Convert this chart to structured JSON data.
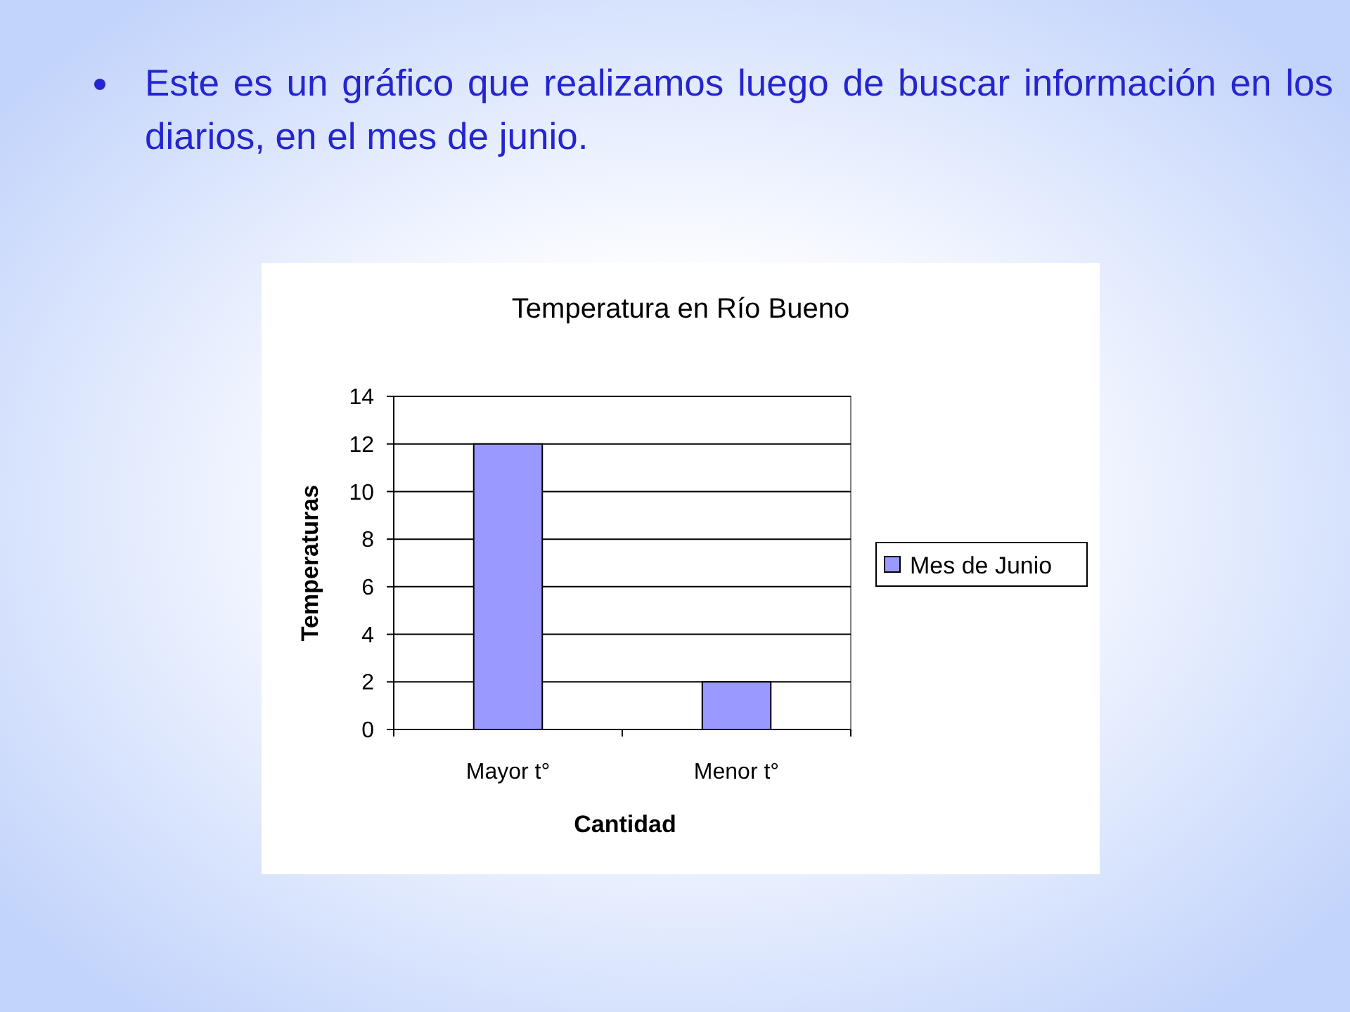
{
  "chart_data": {
    "type": "bar",
    "title": "Temperatura en Río Bueno",
    "xlabel": "Cantidad",
    "ylabel": "Temperaturas",
    "annotations": [
      "Este es un gráfico que realizamos luego de buscar información en los diarios, en el mes de junio."
    ],
    "categories": [
      "Mayor t°",
      "Menor t°"
    ],
    "series": [
      {
        "name": "Mes de Junio",
        "color": "#9999ff",
        "values": [
          12,
          2
        ]
      }
    ],
    "ylim": [
      0,
      14
    ],
    "yticks": [
      0,
      2,
      4,
      6,
      8,
      10,
      12,
      14
    ],
    "grid": "y",
    "legend": "right"
  }
}
